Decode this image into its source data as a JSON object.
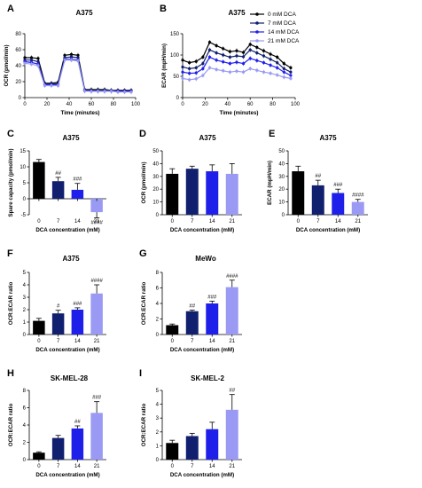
{
  "colors": {
    "c0": "#000000",
    "c7": "#101f6e",
    "c14": "#1f1fea",
    "c21": "#9a9af4"
  },
  "chart_data": [
    {
      "panel": "A",
      "title": "A375",
      "type": "line",
      "xlabel": "Time (minutes)",
      "ylabel": "OCR (pmol/min)",
      "xlim": [
        0,
        100
      ],
      "ylim": [
        0,
        80
      ],
      "xticks": [
        "0",
        "20",
        "40",
        "60",
        "80",
        "100"
      ],
      "yticks": [
        "0",
        "20",
        "40",
        "60",
        "80"
      ],
      "series": [
        {
          "name": "0 mM DCA",
          "x": [
            0,
            6,
            12,
            18,
            24,
            30,
            36,
            42,
            48,
            54,
            60,
            66,
            72,
            78,
            84,
            90,
            96
          ],
          "y": [
            50,
            50,
            49,
            18,
            18,
            19,
            53,
            54,
            53,
            10,
            10,
            10,
            10,
            9,
            9,
            9,
            9
          ]
        },
        {
          "name": "7 mM DCA",
          "x": [
            0,
            6,
            12,
            18,
            24,
            30,
            36,
            42,
            48,
            54,
            60,
            66,
            72,
            78,
            84,
            90,
            96
          ],
          "y": [
            47,
            47,
            45,
            17,
            17,
            17,
            50,
            51,
            50,
            9,
            9,
            9,
            9,
            9,
            8,
            8,
            8
          ]
        },
        {
          "name": "14 mM DCA",
          "x": [
            0,
            6,
            12,
            18,
            24,
            30,
            36,
            42,
            48,
            54,
            60,
            66,
            72,
            78,
            84,
            90,
            96
          ],
          "y": [
            45,
            44,
            42,
            16,
            16,
            16,
            48,
            48,
            47,
            9,
            8,
            8,
            8,
            8,
            8,
            8,
            8
          ]
        },
        {
          "name": "21 mM DCA",
          "x": [
            0,
            6,
            12,
            18,
            24,
            30,
            36,
            42,
            48,
            54,
            60,
            66,
            72,
            78,
            84,
            90,
            96
          ],
          "y": [
            43,
            42,
            40,
            15,
            15,
            15,
            47,
            47,
            46,
            8,
            8,
            8,
            8,
            8,
            7,
            7,
            7
          ]
        }
      ]
    },
    {
      "panel": "B",
      "title": "A375",
      "type": "line",
      "xlabel": "Time (minutes)",
      "ylabel": "ECAR (mpH/min)",
      "xlim": [
        0,
        100
      ],
      "ylim": [
        0,
        150
      ],
      "xticks": [
        "0",
        "20",
        "40",
        "60",
        "80",
        "100"
      ],
      "yticks": [
        "0",
        "50",
        "100",
        "150"
      ],
      "series": [
        {
          "name": "0 mM DCA",
          "x": [
            0,
            6,
            12,
            18,
            24,
            30,
            36,
            42,
            48,
            54,
            60,
            66,
            72,
            78,
            84,
            90,
            96
          ],
          "y": [
            88,
            82,
            85,
            95,
            130,
            122,
            115,
            108,
            110,
            106,
            125,
            118,
            110,
            102,
            95,
            80,
            70
          ]
        },
        {
          "name": "7 mM DCA",
          "x": [
            0,
            6,
            12,
            18,
            24,
            30,
            36,
            42,
            48,
            54,
            60,
            66,
            72,
            78,
            84,
            90,
            96
          ],
          "y": [
            72,
            68,
            70,
            80,
            112,
            105,
            100,
            95,
            98,
            96,
            112,
            105,
            98,
            90,
            82,
            68,
            60
          ]
        },
        {
          "name": "14 mM DCA",
          "x": [
            0,
            6,
            12,
            18,
            24,
            30,
            36,
            42,
            48,
            54,
            60,
            66,
            72,
            78,
            84,
            90,
            96
          ],
          "y": [
            60,
            57,
            58,
            68,
            95,
            88,
            84,
            80,
            83,
            80,
            92,
            87,
            82,
            76,
            70,
            60,
            52
          ]
        },
        {
          "name": "21 mM DCA",
          "x": [
            0,
            6,
            12,
            18,
            24,
            30,
            36,
            42,
            48,
            54,
            60,
            66,
            72,
            78,
            84,
            90,
            96
          ],
          "y": [
            45,
            42,
            44,
            52,
            70,
            66,
            63,
            60,
            62,
            60,
            68,
            64,
            60,
            57,
            53,
            48,
            45
          ]
        }
      ]
    },
    {
      "panel": "C",
      "title": "A375",
      "type": "bar",
      "xlabel": "DCA concentration (mM)",
      "ylabel": "Spare capacity (pmol/min)",
      "categories": [
        "0",
        "7",
        "14",
        "21"
      ],
      "values": [
        11.5,
        5.5,
        2.8,
        -4.2
      ],
      "errors": [
        0.8,
        1.2,
        2.0,
        1.8
      ],
      "significance": [
        "",
        "##",
        "###",
        "####"
      ],
      "ylim": [
        -5,
        15
      ],
      "yticks": [
        "-5",
        "0",
        "5",
        "10",
        "15"
      ]
    },
    {
      "panel": "D",
      "title": "A375",
      "type": "bar",
      "xlabel": "DCA concentration (mM)",
      "ylabel": "OCR (pmol/min)",
      "categories": [
        "0",
        "7",
        "14",
        "21"
      ],
      "values": [
        32,
        36,
        34,
        32
      ],
      "errors": [
        4,
        2,
        5,
        8
      ],
      "significance": [
        "",
        "",
        "",
        ""
      ],
      "ylim": [
        0,
        50
      ],
      "yticks": [
        "0",
        "10",
        "20",
        "30",
        "40",
        "50"
      ]
    },
    {
      "panel": "E",
      "title": "A375",
      "type": "bar",
      "xlabel": "DCA concentration (mM)",
      "ylabel": "ECAR (mpH/min)",
      "categories": [
        "0",
        "7",
        "14",
        "21"
      ],
      "values": [
        34,
        23,
        17,
        10
      ],
      "errors": [
        4,
        4,
        3,
        2
      ],
      "significance": [
        "",
        "##",
        "###",
        "####"
      ],
      "ylim": [
        0,
        50
      ],
      "yticks": [
        "0",
        "10",
        "20",
        "30",
        "40",
        "50"
      ]
    },
    {
      "panel": "F",
      "title": "A375",
      "type": "bar",
      "xlabel": "DCA concentration (mM)",
      "ylabel": "OCR:ECAR ratio",
      "categories": [
        "0",
        "7",
        "14",
        "21"
      ],
      "values": [
        1.1,
        1.7,
        2.0,
        3.3
      ],
      "errors": [
        0.2,
        0.25,
        0.15,
        0.7
      ],
      "significance": [
        "",
        "#",
        "###",
        "####"
      ],
      "ylim": [
        0,
        5
      ],
      "yticks": [
        "0",
        "1",
        "2",
        "3",
        "4",
        "5"
      ]
    },
    {
      "panel": "G",
      "title": "MeWo",
      "type": "bar",
      "xlabel": "DCA concentration (mM)",
      "ylabel": "OCR:ECAR ratio",
      "categories": [
        "0",
        "7",
        "14",
        "21"
      ],
      "values": [
        1.2,
        3.0,
        4.0,
        6.1
      ],
      "errors": [
        0.15,
        0.15,
        0.3,
        0.9
      ],
      "significance": [
        "",
        "##",
        "###",
        "####"
      ],
      "ylim": [
        0,
        8
      ],
      "yticks": [
        "0",
        "2",
        "4",
        "6",
        "8"
      ]
    },
    {
      "panel": "H",
      "title": "SK-MEL-28",
      "type": "bar",
      "xlabel": "DCA concentration (mM)",
      "ylabel": "OCR:ECAR ratio",
      "categories": [
        "0",
        "7",
        "14",
        "21"
      ],
      "values": [
        0.8,
        2.5,
        3.6,
        5.4
      ],
      "errors": [
        0.1,
        0.3,
        0.3,
        1.3
      ],
      "significance": [
        "",
        "",
        "##",
        "###"
      ],
      "ylim": [
        0,
        8
      ],
      "yticks": [
        "0",
        "2",
        "4",
        "6",
        "8"
      ]
    },
    {
      "panel": "I",
      "title": "SK-MEL-2",
      "type": "bar",
      "xlabel": "DCA concentration (mM)",
      "ylabel": "OCR:ECAR ratio",
      "categories": [
        "0",
        "7",
        "14",
        "21"
      ],
      "values": [
        1.2,
        1.7,
        2.2,
        3.6
      ],
      "errors": [
        0.2,
        0.2,
        0.5,
        1.1
      ],
      "significance": [
        "",
        "",
        "",
        "##"
      ],
      "ylim": [
        0,
        5
      ],
      "yticks": [
        "0",
        "1",
        "2",
        "3",
        "4",
        "5"
      ]
    }
  ]
}
